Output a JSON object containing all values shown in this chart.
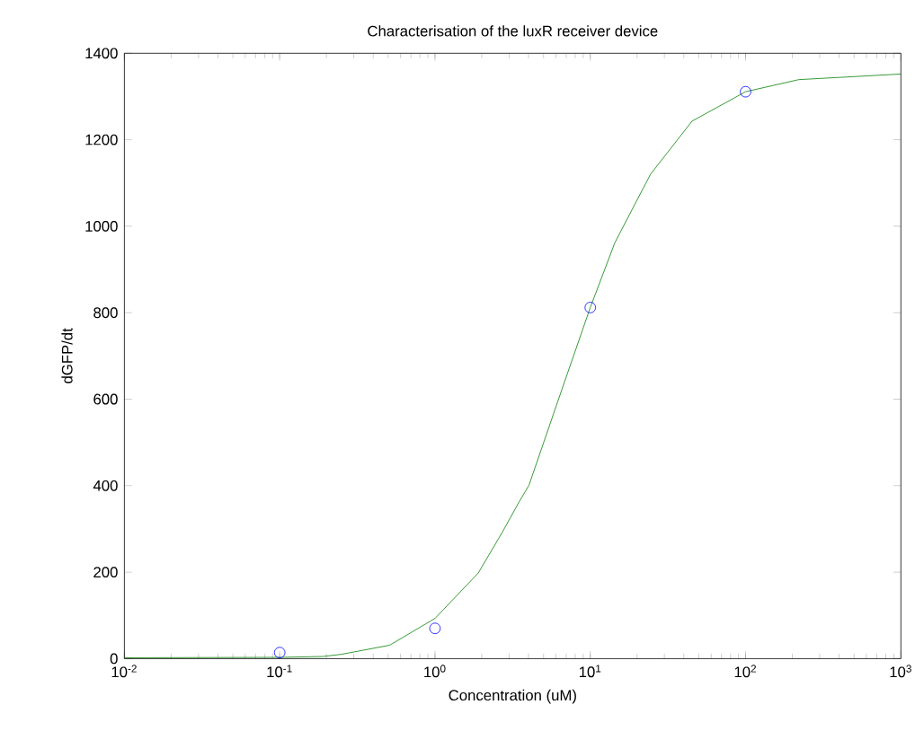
{
  "chart_data": {
    "type": "line",
    "title": "Characterisation of the luxR receiver device",
    "xlabel": "Concentration (uM)",
    "ylabel": "dGFP/dt",
    "log": "x",
    "xlim": [
      0.01,
      1000
    ],
    "xticks": [
      {
        "value": 0.01,
        "label": "10$^{-2}$"
      },
      {
        "value": 0.1,
        "label": "10$^{-1}$"
      },
      {
        "value": 1,
        "label": "10$^{0}$"
      },
      {
        "value": 10,
        "label": "10$^{1}$"
      },
      {
        "value": 100,
        "label": "10$^{2}$"
      },
      {
        "value": 1000,
        "label": "10$^{3}$"
      }
    ],
    "ylim": [
      0,
      1400
    ],
    "yticks": [
      0,
      200,
      400,
      600,
      800,
      1000,
      1200,
      1400
    ],
    "series": [
      {
        "color": "#008000",
        "x": [
          0.01,
          0.1,
          0.19,
          0.25,
          0.51,
          1,
          1.9,
          2.71,
          3.5,
          4.03,
          6.53,
          10,
          14.4,
          24.4,
          45.2,
          100,
          220,
          1000
        ],
        "values": [
          2,
          3,
          5,
          10,
          31,
          93,
          198,
          292,
          364,
          401,
          620,
          812,
          962,
          1120,
          1243,
          1311,
          1339,
          1352
        ]
      },
      {
        "type": "scatter",
        "color": "#0000ff",
        "marker": "circle",
        "x": [
          0.1,
          1,
          10,
          100
        ],
        "values": [
          14,
          70,
          812,
          1311
        ]
      }
    ]
  }
}
